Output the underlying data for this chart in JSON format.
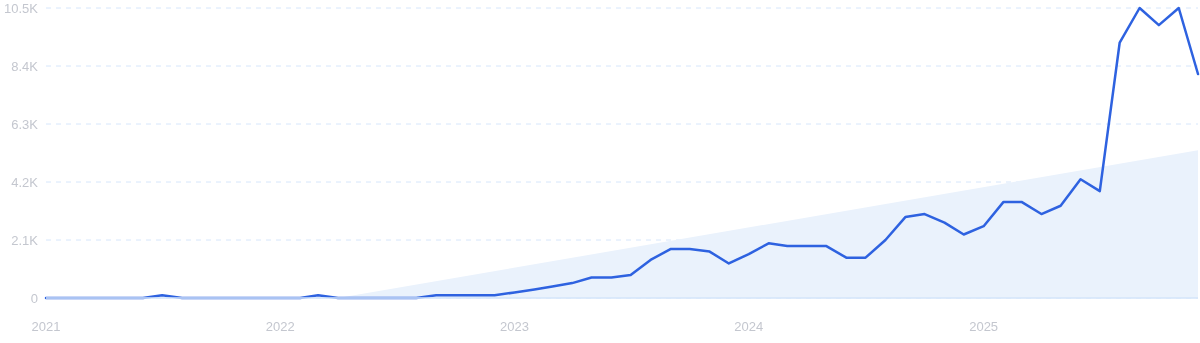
{
  "chart_data": {
    "type": "line",
    "xlim": [
      "2021-01",
      "2025-12"
    ],
    "xticks": [
      "2021",
      "2022",
      "2023",
      "2024",
      "2025"
    ],
    "ylim": [
      0,
      10500
    ],
    "yticks": [
      0,
      {
        "value": 2100,
        "label": "2.1K"
      },
      {
        "value": 4200,
        "label": "4.2K"
      },
      {
        "value": 6300,
        "label": "6.3K"
      },
      {
        "value": 8400,
        "label": "8.4K"
      },
      {
        "value": 10500,
        "label": "10.5K"
      }
    ],
    "grid": "y",
    "marker": "none",
    "line_style": "solid",
    "series": [
      {
        "type": "area",
        "color": "#eaf2fc",
        "x": [
          "2022-04",
          "2025-12"
        ],
        "values": [
          0,
          5350
        ]
      },
      {
        "color": "#2e62e0",
        "x": [
          "2021-01",
          "2021-02",
          "2021-03",
          "2021-04",
          "2021-05",
          "2021-06",
          "2021-07",
          "2021-08",
          "2021-09",
          "2021-10",
          "2021-11",
          "2021-12",
          "2022-01",
          "2022-02",
          "2022-03",
          "2022-04",
          "2022-05",
          "2022-06",
          "2022-07",
          "2022-08",
          "2022-09",
          "2022-10",
          "2022-11",
          "2022-12",
          "2023-01",
          "2023-02",
          "2023-03",
          "2023-04",
          "2023-05",
          "2023-06",
          "2023-07",
          "2023-08",
          "2023-09",
          "2023-10",
          "2023-11",
          "2023-12",
          "2024-01",
          "2024-02",
          "2024-03",
          "2024-04",
          "2024-05",
          "2024-06",
          "2024-07",
          "2024-08",
          "2024-09",
          "2024-10",
          "2024-11",
          "2024-12",
          "2025-01",
          "2025-02",
          "2025-03",
          "2025-04",
          "2025-05",
          "2025-06",
          "2025-07",
          "2025-08",
          "2025-09",
          "2025-10",
          "2025-11",
          "2025-12"
        ],
        "values": [
          0,
          0,
          0,
          0,
          0,
          0,
          100,
          0,
          0,
          0,
          0,
          0,
          0,
          0,
          100,
          0,
          0,
          0,
          0,
          0,
          100,
          100,
          100,
          100,
          200,
          310,
          420,
          540,
          740,
          740,
          830,
          1380,
          1770,
          1770,
          1680,
          1250,
          1590,
          1980,
          1880,
          1880,
          1880,
          1460,
          1460,
          2100,
          2930,
          3040,
          2730,
          2300,
          2600,
          3480,
          3480,
          3040,
          3340,
          4300,
          3870,
          9250,
          10500,
          9880,
          10500,
          8110
        ]
      }
    ]
  }
}
